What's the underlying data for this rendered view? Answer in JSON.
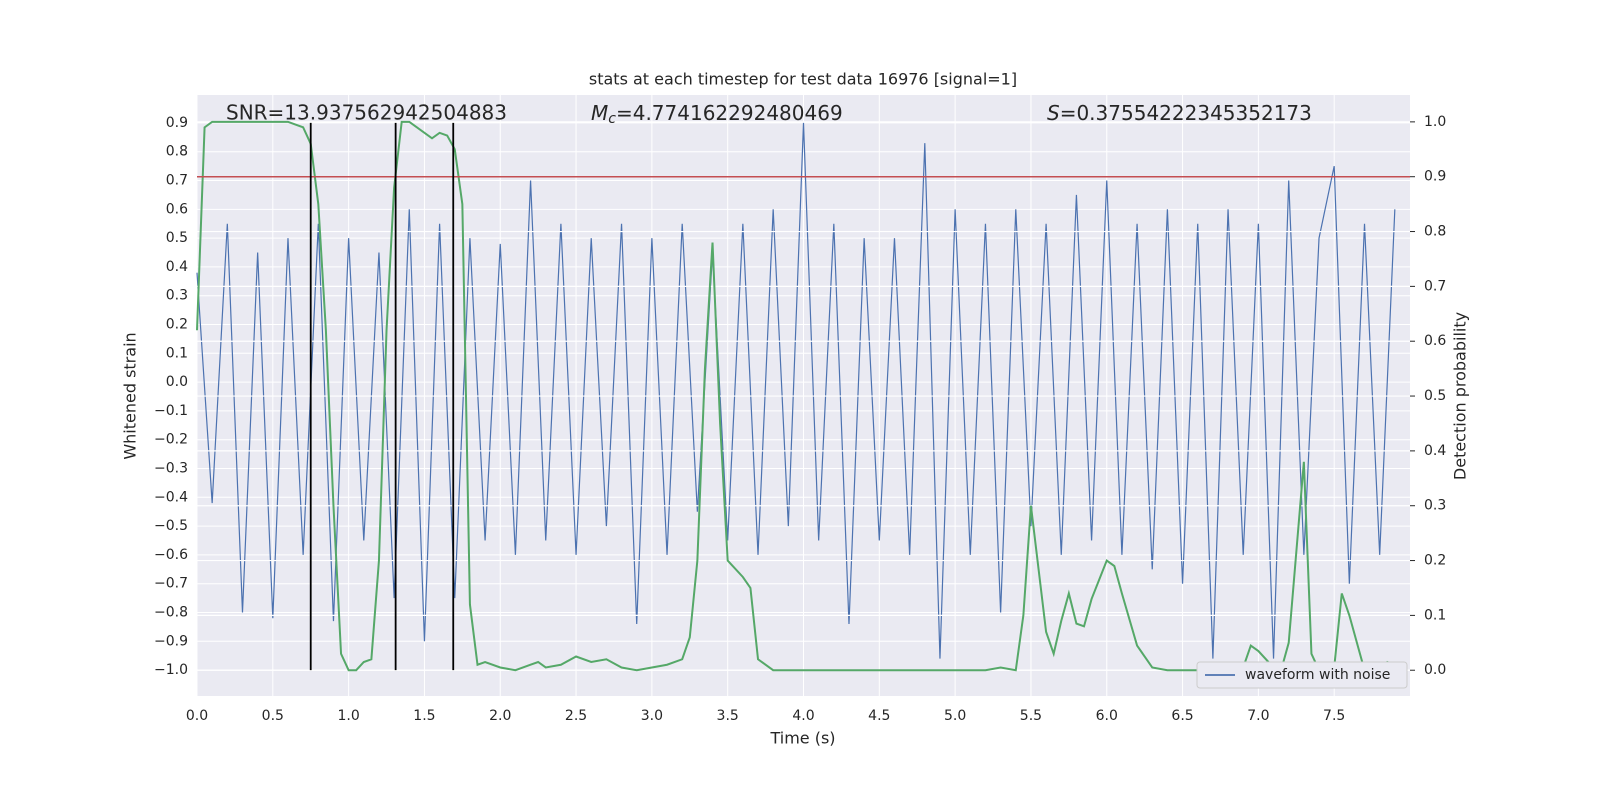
{
  "chart_data": {
    "type": "line",
    "title": "stats at each timestep for test data 16976 [signal=1]",
    "xlabel": "Time (s)",
    "ylabel": "Whitened strain",
    "y2label": "Detection probability",
    "annotations": [
      {
        "text": "SNR=13.937562942504883"
      },
      {
        "symbol": "M",
        "subscript": "c",
        "text": "=4.774162292480469"
      },
      {
        "symbol": "S",
        "text": "=0.37554222345352173"
      }
    ],
    "xlim": [
      0,
      8.0
    ],
    "ylim": [
      -1.09,
      0.997
    ],
    "y2lim": [
      -0.047,
      1.049
    ],
    "xticks": [
      {
        "value": 0,
        "label": "0.0"
      },
      {
        "value": 0.5,
        "label": "0.5"
      },
      {
        "value": 1,
        "label": "1.0"
      },
      {
        "value": 1.5,
        "label": "1.5"
      },
      {
        "value": 2,
        "label": "2.0"
      },
      {
        "value": 2.5,
        "label": "2.5"
      },
      {
        "value": 3,
        "label": "3.0"
      },
      {
        "value": 3.5,
        "label": "3.5"
      },
      {
        "value": 4,
        "label": "4.0"
      },
      {
        "value": 4.5,
        "label": "4.5"
      },
      {
        "value": 5,
        "label": "5.0"
      },
      {
        "value": 5.5,
        "label": "5.5"
      },
      {
        "value": 6,
        "label": "6.0"
      },
      {
        "value": 6.5,
        "label": "6.5"
      },
      {
        "value": 7,
        "label": "7.0"
      },
      {
        "value": 7.5,
        "label": "7.5"
      }
    ],
    "yticks": [
      {
        "value": -1,
        "label": "−1.0"
      },
      {
        "value": -0.9,
        "label": "−0.9"
      },
      {
        "value": -0.8,
        "label": "−0.8"
      },
      {
        "value": -0.7,
        "label": "−0.7"
      },
      {
        "value": -0.6,
        "label": "−0.6"
      },
      {
        "value": -0.5,
        "label": "−0.5"
      },
      {
        "value": -0.4,
        "label": "−0.4"
      },
      {
        "value": -0.3,
        "label": "−0.3"
      },
      {
        "value": -0.2,
        "label": "−0.2"
      },
      {
        "value": -0.1,
        "label": "−0.1"
      },
      {
        "value": 0,
        "label": "0.0"
      },
      {
        "value": 0.1,
        "label": "0.1"
      },
      {
        "value": 0.2,
        "label": "0.2"
      },
      {
        "value": 0.3,
        "label": "0.3"
      },
      {
        "value": 0.4,
        "label": "0.4"
      },
      {
        "value": 0.5,
        "label": "0.5"
      },
      {
        "value": 0.6,
        "label": "0.6"
      },
      {
        "value": 0.7,
        "label": "0.7"
      },
      {
        "value": 0.8,
        "label": "0.8"
      },
      {
        "value": 0.9,
        "label": "0.9"
      }
    ],
    "y2ticks": [
      {
        "value": 0,
        "label": "0.0"
      },
      {
        "value": 0.1,
        "label": "0.1"
      },
      {
        "value": 0.2,
        "label": "0.2"
      },
      {
        "value": 0.3,
        "label": "0.3"
      },
      {
        "value": 0.4,
        "label": "0.4"
      },
      {
        "value": 0.5,
        "label": "0.5"
      },
      {
        "value": 0.6,
        "label": "0.6"
      },
      {
        "value": 0.7,
        "label": "0.7"
      },
      {
        "value": 0.8,
        "label": "0.8"
      },
      {
        "value": 0.9,
        "label": "0.9"
      },
      {
        "value": 1,
        "label": "1.0"
      }
    ],
    "grid": true,
    "legend": "lower right",
    "threshold": {
      "y2": 0.9,
      "color": "#c44e52"
    },
    "vlines": {
      "x": [
        0.75,
        1.31,
        1.69
      ],
      "span": [
        -1.0,
        0.9
      ],
      "color": "#000000"
    },
    "series": [
      {
        "name": "waveform with noise",
        "color": "#4c72b0",
        "x": [
          0,
          0.1,
          0.2,
          0.3,
          0.4,
          0.5,
          0.6,
          0.7,
          0.8,
          0.9,
          1,
          1.1,
          1.2,
          1.3,
          1.4,
          1.5,
          1.6,
          1.7,
          1.8,
          1.9,
          2,
          2.1,
          2.2,
          2.3,
          2.4,
          2.5,
          2.6,
          2.7,
          2.8,
          2.9,
          3,
          3.1,
          3.2,
          3.3,
          3.4,
          3.5,
          3.6,
          3.7,
          3.8,
          3.9,
          4,
          4.1,
          4.2,
          4.3,
          4.4,
          4.5,
          4.6,
          4.7,
          4.8,
          4.9,
          5,
          5.1,
          5.2,
          5.3,
          5.4,
          5.5,
          5.6,
          5.7,
          5.8,
          5.9,
          6,
          6.1,
          6.2,
          6.3,
          6.4,
          6.5,
          6.6,
          6.7,
          6.8,
          6.9,
          7,
          7.1,
          7.2,
          7.3,
          7.4,
          7.5,
          7.6,
          7.7,
          7.8,
          7.9
        ],
        "values": [
          0.38,
          -0.42,
          0.55,
          -0.8,
          0.45,
          -0.82,
          0.5,
          -0.6,
          0.55,
          -0.83,
          0.5,
          -0.55,
          0.45,
          -0.75,
          0.6,
          -0.9,
          0.55,
          -0.75,
          0.5,
          -0.55,
          0.48,
          -0.6,
          0.7,
          -0.55,
          0.55,
          -0.6,
          0.5,
          -0.5,
          0.55,
          -0.84,
          0.5,
          -0.6,
          0.55,
          -0.45,
          0.45,
          -0.55,
          0.55,
          -0.6,
          0.6,
          -0.5,
          0.9,
          -0.55,
          0.55,
          -0.84,
          0.5,
          -0.55,
          0.5,
          -0.6,
          0.83,
          -0.96,
          0.6,
          -0.6,
          0.55,
          -0.8,
          0.6,
          -0.5,
          0.55,
          -0.6,
          0.65,
          -0.55,
          0.7,
          -0.6,
          0.55,
          -0.65,
          0.6,
          -0.7,
          0.55,
          -0.96,
          0.6,
          -0.6,
          0.55,
          -0.96,
          0.7,
          -0.6,
          0.5,
          0.75,
          -0.7,
          0.55,
          -0.6,
          0.6
        ]
      },
      {
        "color": "#55a868",
        "axis": "y2",
        "x": [
          0,
          0.05,
          0.1,
          0.2,
          0.3,
          0.4,
          0.5,
          0.6,
          0.7,
          0.75,
          0.8,
          0.85,
          0.9,
          0.95,
          1,
          1.05,
          1.1,
          1.15,
          1.2,
          1.25,
          1.3,
          1.35,
          1.4,
          1.45,
          1.5,
          1.55,
          1.6,
          1.65,
          1.7,
          1.75,
          1.8,
          1.85,
          1.9,
          2,
          2.1,
          2.2,
          2.25,
          2.3,
          2.4,
          2.5,
          2.6,
          2.7,
          2.8,
          2.9,
          3,
          3.1,
          3.2,
          3.25,
          3.3,
          3.35,
          3.4,
          3.45,
          3.5,
          3.6,
          3.65,
          3.7,
          3.8,
          3.9,
          4,
          4.2,
          4.4,
          4.6,
          4.8,
          5,
          5.2,
          5.3,
          5.4,
          5.45,
          5.5,
          5.6,
          5.65,
          5.7,
          5.75,
          5.8,
          5.85,
          5.9,
          6,
          6.05,
          6.1,
          6.2,
          6.3,
          6.4,
          6.6,
          6.8,
          6.9,
          6.95,
          7,
          7.1,
          7.15,
          7.2,
          7.3,
          7.35,
          7.4,
          7.5,
          7.55,
          7.6,
          7.7,
          7.8,
          7.85,
          7.9,
          7.95
        ],
        "values": [
          0.62,
          0.99,
          1,
          1,
          1,
          1,
          1,
          1,
          0.99,
          0.96,
          0.85,
          0.62,
          0.3,
          0.03,
          0,
          0,
          0.015,
          0.02,
          0.2,
          0.62,
          0.88,
          1,
          1,
          0.99,
          0.98,
          0.97,
          0.98,
          0.975,
          0.95,
          0.85,
          0.12,
          0.01,
          0.015,
          0.005,
          0,
          0.01,
          0.015,
          0.005,
          0.01,
          0.025,
          0.015,
          0.02,
          0.005,
          0,
          0.005,
          0.01,
          0.02,
          0.06,
          0.2,
          0.55,
          0.78,
          0.45,
          0.2,
          0.17,
          0.15,
          0.02,
          0,
          0,
          0,
          0,
          0,
          0,
          0,
          0,
          0,
          0.005,
          0,
          0.1,
          0.3,
          0.07,
          0.03,
          0.09,
          0.14,
          0.085,
          0.08,
          0.13,
          0.2,
          0.19,
          0.14,
          0.045,
          0.005,
          0,
          0,
          0,
          0.005,
          0.045,
          0.035,
          0.005,
          0,
          0.05,
          0.38,
          0.03,
          0,
          0.005,
          0.14,
          0.1,
          0,
          0,
          0.015,
          0.01,
          0
        ]
      }
    ]
  }
}
